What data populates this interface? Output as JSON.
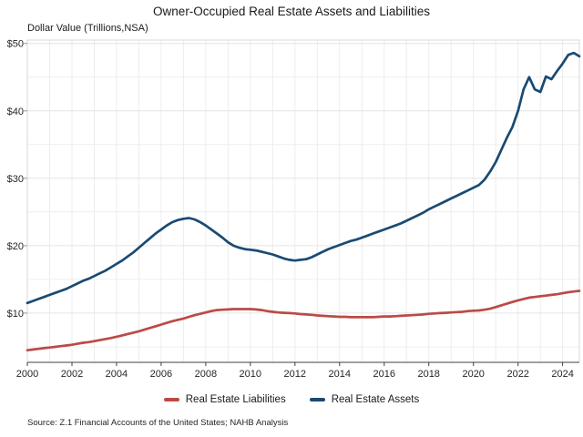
{
  "header": {
    "title": "Owner-Occupied Real Estate Assets and Liabilities",
    "y_axis_note": "Dollar Value (Trillions,NSA)"
  },
  "footer": {
    "source": "Source: Z.1 Financial Accounts of the United States; NAHB Analysis"
  },
  "legend": [
    {
      "label": "Real Estate Liabilities",
      "color": "#BB4A47"
    },
    {
      "label": "Real Estate Assets",
      "color": "#1A4A73"
    }
  ],
  "chart_data": {
    "type": "line",
    "title": "Owner-Occupied Real Estate Assets and Liabilities",
    "ylabel": "Dollar Value (Trillions,NSA)",
    "x_start": 2000,
    "x_step": 0.25,
    "x_unit": "year (quarterly)",
    "y_unit": "trillions of dollars",
    "xlim": [
      2000,
      2024.75
    ],
    "ylim": [
      2.7,
      50.5
    ],
    "grid": {
      "x_step": 1,
      "y_step": 5
    },
    "x_ticks": [
      2000,
      2002,
      2004,
      2006,
      2008,
      2010,
      2012,
      2014,
      2016,
      2018,
      2020,
      2022,
      2024
    ],
    "y_ticks": [
      {
        "value": 10,
        "label": "$10"
      },
      {
        "value": 20,
        "label": "$20"
      },
      {
        "value": 30,
        "label": "$30"
      },
      {
        "value": 40,
        "label": "$40"
      },
      {
        "value": 50,
        "label": "$50"
      }
    ],
    "series": [
      {
        "name": "Real Estate Liabilities",
        "color": "#BB4A47",
        "values": [
          4.5,
          4.6,
          4.7,
          4.8,
          4.9,
          5.0,
          5.1,
          5.2,
          5.3,
          5.45,
          5.6,
          5.7,
          5.85,
          6.0,
          6.15,
          6.3,
          6.5,
          6.7,
          6.9,
          7.1,
          7.3,
          7.55,
          7.8,
          8.05,
          8.3,
          8.55,
          8.8,
          9.0,
          9.2,
          9.45,
          9.7,
          9.9,
          10.1,
          10.3,
          10.45,
          10.5,
          10.55,
          10.6,
          10.6,
          10.6,
          10.6,
          10.55,
          10.45,
          10.3,
          10.2,
          10.1,
          10.05,
          10.0,
          9.95,
          9.85,
          9.8,
          9.75,
          9.65,
          9.6,
          9.55,
          9.5,
          9.45,
          9.45,
          9.4,
          9.4,
          9.4,
          9.4,
          9.4,
          9.45,
          9.5,
          9.5,
          9.55,
          9.6,
          9.65,
          9.7,
          9.75,
          9.8,
          9.9,
          9.95,
          10.0,
          10.05,
          10.1,
          10.15,
          10.2,
          10.3,
          10.35,
          10.4,
          10.5,
          10.65,
          10.9,
          11.15,
          11.4,
          11.65,
          11.9,
          12.1,
          12.3,
          12.4,
          12.5,
          12.6,
          12.7,
          12.8,
          12.95,
          13.1,
          13.2,
          13.3
        ]
      },
      {
        "name": "Real Estate Assets",
        "color": "#1A4A73",
        "values": [
          11.5,
          11.8,
          12.1,
          12.4,
          12.7,
          13.0,
          13.3,
          13.6,
          14.0,
          14.4,
          14.8,
          15.1,
          15.5,
          15.9,
          16.3,
          16.8,
          17.3,
          17.8,
          18.4,
          19.0,
          19.7,
          20.4,
          21.1,
          21.8,
          22.4,
          23.0,
          23.5,
          23.8,
          24.0,
          24.1,
          23.9,
          23.5,
          23.0,
          22.4,
          21.8,
          21.2,
          20.5,
          20.0,
          19.7,
          19.5,
          19.4,
          19.3,
          19.1,
          18.9,
          18.7,
          18.4,
          18.1,
          17.9,
          17.8,
          17.9,
          18.0,
          18.3,
          18.7,
          19.1,
          19.5,
          19.8,
          20.1,
          20.4,
          20.7,
          20.9,
          21.2,
          21.5,
          21.8,
          22.1,
          22.4,
          22.7,
          23.0,
          23.3,
          23.7,
          24.1,
          24.5,
          24.9,
          25.4,
          25.8,
          26.2,
          26.6,
          27.0,
          27.4,
          27.8,
          28.2,
          28.6,
          29.0,
          29.8,
          31.0,
          32.4,
          34.2,
          36.0,
          37.6,
          40.0,
          43.2,
          45.0,
          43.2,
          42.8,
          45.1,
          44.7,
          45.9,
          47.0,
          48.3,
          48.6,
          48.1
        ]
      }
    ]
  }
}
